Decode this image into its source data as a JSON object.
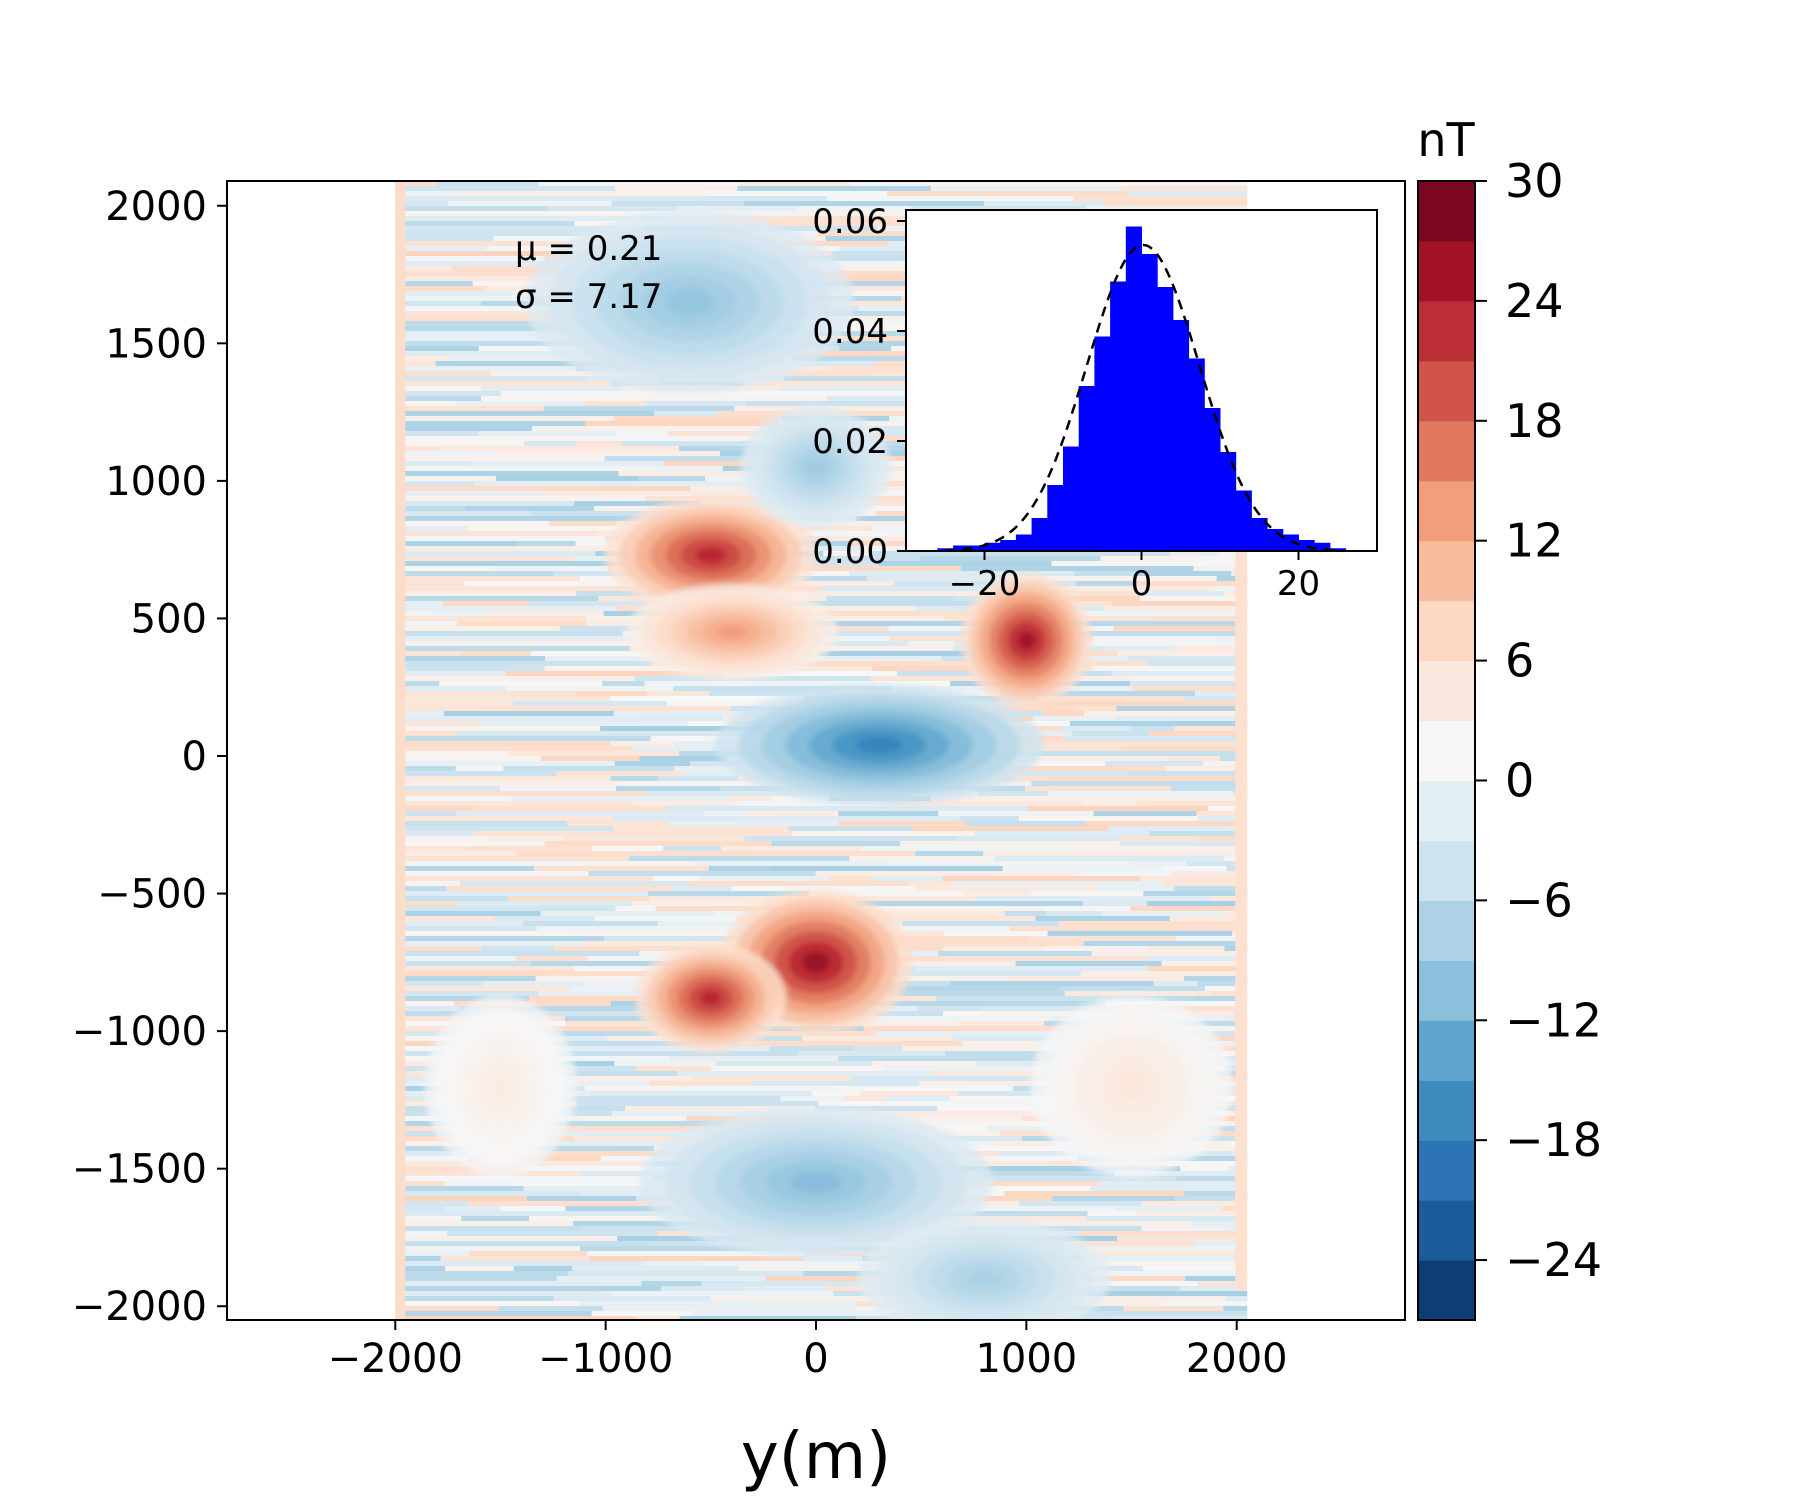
{
  "chart_data": [
    {
      "type": "heatmap",
      "title": "",
      "xlabel": "y(m)",
      "ylabel": "",
      "xlim": [
        -2800,
        2800
      ],
      "ylim": [
        -2050,
        2090
      ],
      "x_ticks": [
        -2000,
        -1000,
        0,
        1000,
        2000
      ],
      "y_ticks": [
        -2000,
        -1500,
        -1000,
        -500,
        0,
        500,
        1000,
        1500,
        2000
      ],
      "data_extent": {
        "x": [
          -2000,
          2050
        ],
        "y": [
          -2050,
          2090
        ]
      },
      "colormap": "RdBu_r",
      "grid": false,
      "features": [
        {
          "x": -500,
          "y": 730,
          "value": 24,
          "sx": 420,
          "sy": 190
        },
        {
          "x": -400,
          "y": 450,
          "value": 14,
          "sx": 420,
          "sy": 160
        },
        {
          "x": 1000,
          "y": 420,
          "value": 26,
          "sx": 260,
          "sy": 220
        },
        {
          "x": 0,
          "y": -750,
          "value": 27,
          "sx": 380,
          "sy": 240
        },
        {
          "x": -500,
          "y": -880,
          "value": 24,
          "sx": 300,
          "sy": 180
        },
        {
          "x": 300,
          "y": 40,
          "value": -18,
          "sx": 650,
          "sy": 200
        },
        {
          "x": -600,
          "y": 1650,
          "value": -10,
          "sx": 650,
          "sy": 300
        },
        {
          "x": 0,
          "y": 1050,
          "value": -9,
          "sx": 300,
          "sy": 200
        },
        {
          "x": 0,
          "y": -1550,
          "value": -11,
          "sx": 700,
          "sy": 250
        },
        {
          "x": 800,
          "y": -1900,
          "value": -8,
          "sx": 500,
          "sy": 200
        },
        {
          "x": 1500,
          "y": -1200,
          "value": 5,
          "sx": 400,
          "sy": 300
        },
        {
          "x": -1500,
          "y": -1200,
          "value": 4,
          "sx": 300,
          "sy": 300
        }
      ],
      "colorbar": {
        "label": "nT",
        "ticks": [
          30,
          24,
          18,
          12,
          6,
          0,
          -6,
          -12,
          -18,
          -24
        ],
        "range": [
          -27,
          30
        ],
        "levels": 19
      },
      "annotations": [
        "μ = 0.21",
        "σ = 7.17"
      ]
    },
    {
      "type": "bar",
      "title": "",
      "xlabel": "",
      "ylabel": "",
      "xlim": [
        -30,
        30
      ],
      "ylim": [
        0,
        0.062
      ],
      "x_ticks": [
        -20,
        0,
        20
      ],
      "x_tick_labels": [
        "−20",
        "0",
        "20"
      ],
      "y_ticks": [
        0,
        0.02,
        0.04,
        0.06
      ],
      "y_tick_labels": [
        "0.00",
        "0.02",
        "0.04",
        "0.06"
      ],
      "bin_edges": [
        -26,
        -24,
        -22,
        -20,
        -18,
        -16,
        -14,
        -12,
        -10,
        -8,
        -6,
        -4,
        -2,
        0,
        2,
        4,
        6,
        8,
        10,
        12,
        14,
        16,
        18,
        20,
        22,
        24,
        26
      ],
      "values": [
        0.0005,
        0.001,
        0.001,
        0.0015,
        0.002,
        0.003,
        0.006,
        0.012,
        0.019,
        0.03,
        0.039,
        0.049,
        0.059,
        0.054,
        0.048,
        0.042,
        0.035,
        0.026,
        0.018,
        0.011,
        0.006,
        0.004,
        0.003,
        0.002,
        0.0015,
        0.0005
      ],
      "color": "#0000ff",
      "fit": {
        "kind": "gaussian",
        "mean": 0.21,
        "std": 7.17,
        "style": "dashed",
        "color": "#000000"
      }
    }
  ]
}
